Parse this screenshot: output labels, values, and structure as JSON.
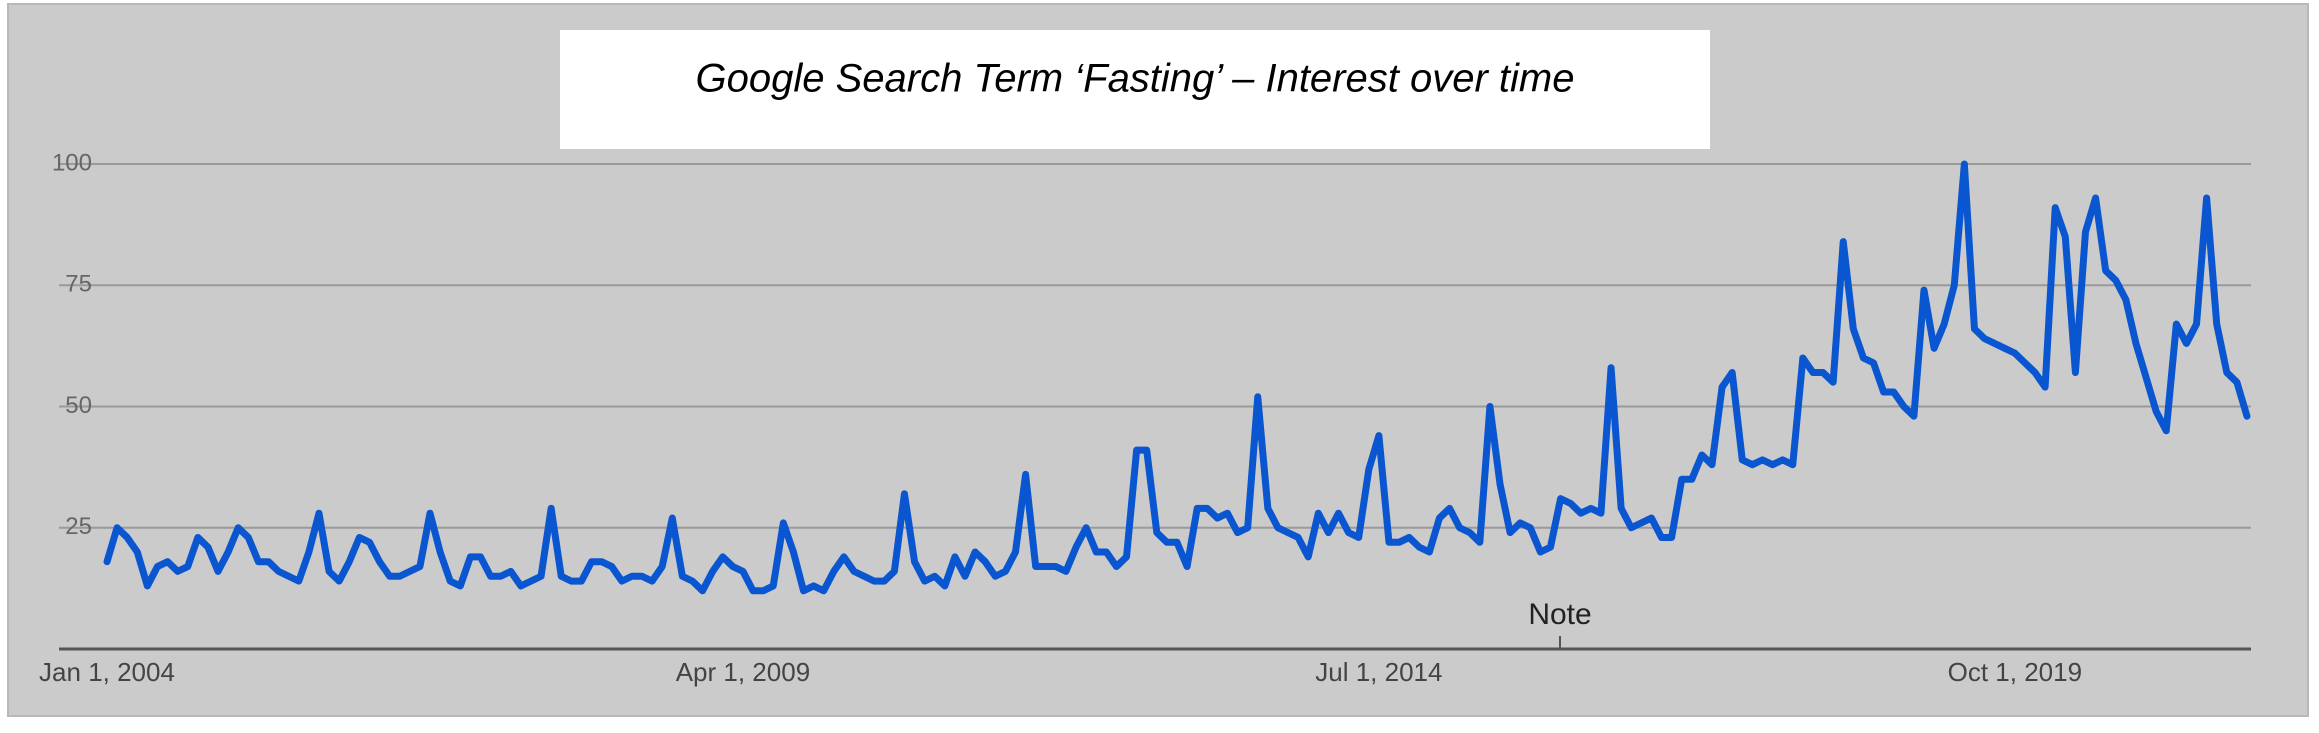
{
  "chart_data": {
    "type": "line",
    "title": "Google Search Term ‘Fasting’ – Interest over time",
    "annotation": "Note",
    "categories": [
      "Jan 1, 2004",
      null,
      null,
      null,
      null,
      null,
      null,
      null,
      null,
      null,
      null,
      null,
      null,
      null,
      null,
      null,
      null,
      null,
      null,
      null,
      null,
      null,
      null,
      null,
      null,
      null,
      null,
      null,
      null,
      null,
      null,
      null,
      null,
      null,
      null,
      null,
      null,
      null,
      null,
      null,
      null,
      null,
      null,
      null,
      null,
      null,
      null,
      null,
      null,
      null,
      null,
      null,
      null,
      null,
      null,
      null,
      null,
      null,
      null,
      null,
      null,
      null,
      null,
      "Apr 1, 2009",
      null,
      null,
      null,
      null,
      null,
      null,
      null,
      null,
      null,
      null,
      null,
      null,
      null,
      null,
      null,
      null,
      null,
      null,
      null,
      null,
      null,
      null,
      null,
      null,
      null,
      null,
      null,
      null,
      null,
      null,
      null,
      null,
      null,
      null,
      null,
      null,
      null,
      null,
      null,
      null,
      null,
      null,
      null,
      null,
      null,
      null,
      null,
      null,
      null,
      null,
      null,
      null,
      null,
      null,
      null,
      null,
      null,
      null,
      null,
      null,
      null,
      null,
      "Jul 1, 2014",
      null,
      null,
      null,
      null,
      null,
      null,
      null,
      null,
      null,
      null,
      null,
      null,
      null,
      null,
      null,
      null,
      null,
      null,
      null,
      null,
      null,
      null,
      null,
      null,
      null,
      null,
      null,
      null,
      null,
      null,
      null,
      null,
      null,
      null,
      null,
      null,
      null,
      null,
      null,
      null,
      null,
      null,
      null,
      null,
      null,
      null,
      null,
      null,
      null,
      null,
      null,
      null,
      null,
      null,
      null,
      null,
      null,
      null,
      null,
      null,
      null,
      null,
      "Oct 1, 2019",
      null,
      null,
      null,
      null,
      null,
      null,
      null,
      null,
      null,
      null,
      null,
      null,
      null,
      null,
      null,
      null,
      null,
      null,
      null,
      null,
      null,
      null,
      null
    ],
    "values": [
      18,
      25,
      23,
      20,
      13,
      17,
      18,
      16,
      17,
      23,
      21,
      16,
      20,
      25,
      23,
      18,
      18,
      16,
      15,
      14,
      20,
      28,
      16,
      14,
      18,
      23,
      22,
      18,
      15,
      15,
      16,
      17,
      28,
      20,
      14,
      13,
      19,
      19,
      15,
      15,
      16,
      13,
      14,
      15,
      29,
      15,
      14,
      14,
      18,
      18,
      17,
      14,
      15,
      15,
      14,
      17,
      27,
      15,
      14,
      12,
      16,
      19,
      17,
      16,
      12,
      12,
      13,
      26,
      20,
      12,
      13,
      12,
      16,
      19,
      16,
      15,
      14,
      14,
      16,
      32,
      18,
      14,
      15,
      13,
      19,
      15,
      20,
      18,
      15,
      16,
      20,
      36,
      17,
      17,
      17,
      16,
      21,
      25,
      20,
      20,
      17,
      19,
      41,
      41,
      24,
      22,
      22,
      17,
      29,
      29,
      27,
      28,
      24,
      25,
      52,
      29,
      25,
      24,
      23,
      19,
      28,
      24,
      28,
      24,
      23,
      37,
      44,
      22,
      22,
      23,
      21,
      20,
      27,
      29,
      25,
      24,
      22,
      50,
      34,
      24,
      26,
      25,
      20,
      21,
      31,
      30,
      28,
      29,
      28,
      58,
      29,
      25,
      26,
      27,
      23,
      23,
      35,
      35,
      40,
      38,
      54,
      57,
      39,
      38,
      39,
      38,
      39,
      38,
      60,
      57,
      57,
      55,
      84,
      66,
      60,
      59,
      53,
      53,
      50,
      48,
      74,
      62,
      67,
      75,
      100,
      66,
      64,
      63,
      62,
      61,
      59,
      57,
      54,
      91,
      85,
      57,
      86,
      93,
      78,
      76,
      72,
      63,
      56,
      49,
      45,
      67,
      63,
      67,
      93,
      67,
      57,
      55,
      48
    ],
    "color": "#0a56d0",
    "ylim": [
      0,
      100
    ],
    "yticks": [
      25,
      50,
      75,
      100
    ],
    "grid": true
  }
}
